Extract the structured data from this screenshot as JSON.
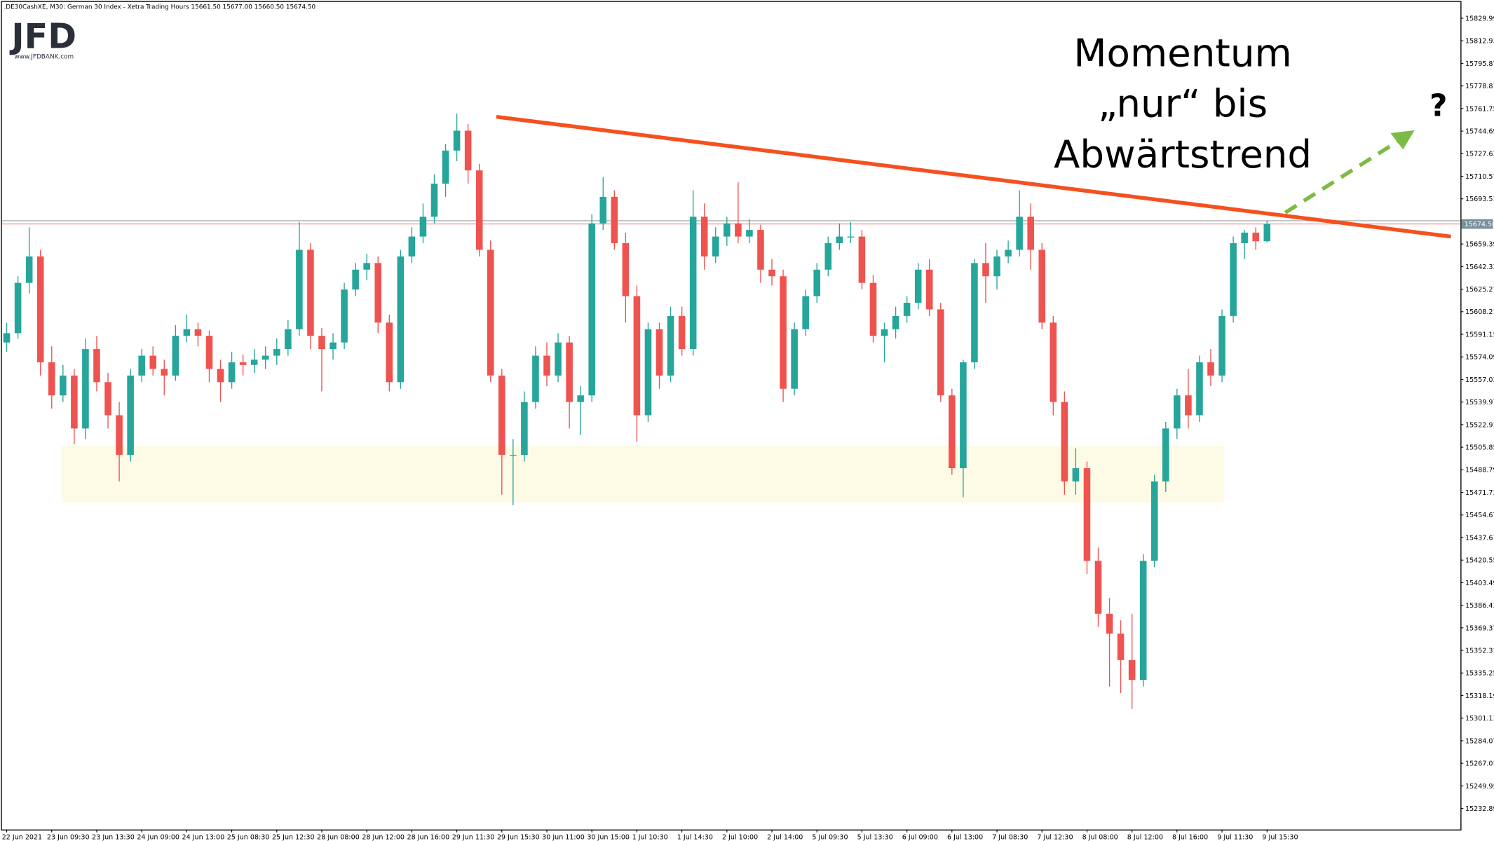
{
  "chart_data": {
    "type": "candlestick",
    "title": ".DE30CashXE, M30:  German 30 Index  - Xetra Trading Hours  15661.50 15677.00 15660.50 15674.50",
    "logo": {
      "text": "JFD",
      "url": "www.JFDBANK.com"
    },
    "annotation": [
      "Momentum",
      "„nur“ bis",
      "Abwärtstrend"
    ],
    "question": "?",
    "x_labels": [
      "22 Jun 2021",
      "23 Jun 09:30",
      "23 Jun 13:30",
      "24 Jun 09:00",
      "24 Jun 13:00",
      "25 Jun 08:30",
      "25 Jun 12:30",
      "28 Jun 08:00",
      "28 Jun 12:00",
      "28 Jun 16:00",
      "29 Jun 11:30",
      "29 Jun 15:30",
      "30 Jun 11:00",
      "30 Jun 15:00",
      "1 Jul 10:30",
      "1 Jul 14:30",
      "2 Jul 10:00",
      "2 Jul 14:00",
      "5 Jul 09:30",
      "5 Jul 13:30",
      "6 Jul 09:00",
      "6 Jul 13:00",
      "7 Jul 08:30",
      "7 Jul 12:30",
      "8 Jul 08:00",
      "8 Jul 12:00",
      "8 Jul 16:00",
      "9 Jul 11:30",
      "9 Jul 15:30"
    ],
    "candles": [
      [
        15585,
        15600,
        15578,
        15592
      ],
      [
        15592,
        15635,
        15588,
        15630
      ],
      [
        15630,
        15672,
        15622,
        15650
      ],
      [
        15650,
        15655,
        15560,
        15570
      ],
      [
        15570,
        15582,
        15535,
        15545
      ],
      [
        15545,
        15568,
        15540,
        15560
      ],
      [
        15560,
        15565,
        15508,
        15520
      ],
      [
        15520,
        15588,
        15512,
        15580
      ],
      [
        15580,
        15590,
        15548,
        15555
      ],
      [
        15555,
        15562,
        15520,
        15530
      ],
      [
        15530,
        15540,
        15480,
        15500
      ],
      [
        15500,
        15565,
        15495,
        15560
      ],
      [
        15560,
        15580,
        15555,
        15575
      ],
      [
        15575,
        15582,
        15560,
        15565
      ],
      [
        15565,
        15572,
        15545,
        15560
      ],
      [
        15560,
        15598,
        15556,
        15590
      ],
      [
        15590,
        15606,
        15585,
        15595
      ],
      [
        15595,
        15600,
        15582,
        15590
      ],
      [
        15590,
        15594,
        15555,
        15565
      ],
      [
        15565,
        15572,
        15540,
        15555
      ],
      [
        15555,
        15578,
        15550,
        15570
      ],
      [
        15570,
        15576,
        15560,
        15568
      ],
      [
        15568,
        15580,
        15562,
        15572
      ],
      [
        15572,
        15582,
        15565,
        15575
      ],
      [
        15575,
        15588,
        15568,
        15580
      ],
      [
        15580,
        15602,
        15575,
        15595
      ],
      [
        15595,
        15676,
        15590,
        15655
      ],
      [
        15655,
        15660,
        15580,
        15590
      ],
      [
        15590,
        15596,
        15548,
        15580
      ],
      [
        15580,
        15592,
        15572,
        15585
      ],
      [
        15585,
        15630,
        15580,
        15625
      ],
      [
        15625,
        15645,
        15620,
        15640
      ],
      [
        15640,
        15652,
        15632,
        15645
      ],
      [
        15645,
        15650,
        15592,
        15600
      ],
      [
        15600,
        15606,
        15548,
        15555
      ],
      [
        15555,
        15655,
        15550,
        15650
      ],
      [
        15650,
        15672,
        15645,
        15665
      ],
      [
        15665,
        15690,
        15660,
        15680
      ],
      [
        15680,
        15712,
        15675,
        15705
      ],
      [
        15705,
        15735,
        15695,
        15730
      ],
      [
        15730,
        15758,
        15722,
        15745
      ],
      [
        15745,
        15750,
        15705,
        15715
      ],
      [
        15715,
        15720,
        15650,
        15655
      ],
      [
        15655,
        15662,
        15555,
        15560
      ],
      [
        15560,
        15565,
        15470,
        15500
      ],
      [
        15500,
        15512,
        15462,
        15500
      ],
      [
        15500,
        15548,
        15495,
        15540
      ],
      [
        15540,
        15582,
        15535,
        15575
      ],
      [
        15575,
        15585,
        15552,
        15560
      ],
      [
        15560,
        15592,
        15555,
        15585
      ],
      [
        15585,
        15590,
        15520,
        15540
      ],
      [
        15540,
        15552,
        15515,
        15545
      ],
      [
        15545,
        15682,
        15540,
        15675
      ],
      [
        15675,
        15710,
        15670,
        15695
      ],
      [
        15695,
        15700,
        15655,
        15660
      ],
      [
        15660,
        15668,
        15600,
        15620
      ],
      [
        15620,
        15628,
        15510,
        15530
      ],
      [
        15530,
        15600,
        15525,
        15595
      ],
      [
        15595,
        15600,
        15550,
        15560
      ],
      [
        15560,
        15612,
        15555,
        15605
      ],
      [
        15605,
        15612,
        15575,
        15580
      ],
      [
        15580,
        15700,
        15575,
        15680
      ],
      [
        15680,
        15690,
        15640,
        15650
      ],
      [
        15650,
        15672,
        15645,
        15665
      ],
      [
        15665,
        15680,
        15658,
        15675
      ],
      [
        15675,
        15706,
        15660,
        15665
      ],
      [
        15665,
        15678,
        15660,
        15670
      ],
      [
        15670,
        15674,
        15630,
        15640
      ],
      [
        15640,
        15648,
        15628,
        15635
      ],
      [
        15635,
        15640,
        15540,
        15550
      ],
      [
        15550,
        15600,
        15545,
        15595
      ],
      [
        15595,
        15625,
        15590,
        15620
      ],
      [
        15620,
        15645,
        15615,
        15640
      ],
      [
        15640,
        15665,
        15635,
        15660
      ],
      [
        15660,
        15675,
        15655,
        15665
      ],
      [
        15665,
        15676,
        15660,
        15665
      ],
      [
        15665,
        15670,
        15625,
        15630
      ],
      [
        15630,
        15636,
        15585,
        15590
      ],
      [
        15590,
        15600,
        15570,
        15595
      ],
      [
        15595,
        15612,
        15588,
        15605
      ],
      [
        15605,
        15620,
        15600,
        15615
      ],
      [
        15615,
        15645,
        15610,
        15640
      ],
      [
        15640,
        15648,
        15605,
        15610
      ],
      [
        15610,
        15615,
        15540,
        15545
      ],
      [
        15545,
        15550,
        15485,
        15490
      ],
      [
        15490,
        15572,
        15468,
        15570
      ],
      [
        15570,
        15648,
        15565,
        15645
      ],
      [
        15645,
        15660,
        15615,
        15635
      ],
      [
        15635,
        15655,
        15625,
        15650
      ],
      [
        15650,
        15662,
        15645,
        15655
      ],
      [
        15655,
        15700,
        15650,
        15680
      ],
      [
        15680,
        15690,
        15640,
        15655
      ],
      [
        15655,
        15660,
        15595,
        15600
      ],
      [
        15600,
        15605,
        15530,
        15540
      ],
      [
        15540,
        15548,
        15470,
        15480
      ],
      [
        15480,
        15505,
        15470,
        15490
      ],
      [
        15490,
        15495,
        15410,
        15420
      ],
      [
        15420,
        15430,
        15370,
        15380
      ],
      [
        15380,
        15392,
        15325,
        15365
      ],
      [
        15365,
        15375,
        15320,
        15345
      ],
      [
        15345,
        15380,
        15308,
        15330
      ],
      [
        15330,
        15425,
        15325,
        15420
      ],
      [
        15420,
        15485,
        15415,
        15480
      ],
      [
        15480,
        15525,
        15472,
        15520
      ],
      [
        15520,
        15550,
        15512,
        15545
      ],
      [
        15545,
        15565,
        15520,
        15530
      ],
      [
        15530,
        15575,
        15525,
        15570
      ],
      [
        15570,
        15580,
        15552,
        15560
      ],
      [
        15560,
        15610,
        15555,
        15605
      ],
      [
        15605,
        15665,
        15600,
        15660
      ],
      [
        15660,
        15670,
        15648,
        15668
      ],
      [
        15668,
        15672,
        15655,
        15661.5
      ],
      [
        15661.5,
        15677,
        15660.5,
        15674.5
      ]
    ],
    "up_color": "#26a69a",
    "down_color": "#ef5350",
    "ylim": [
      15217,
      15842.3
    ],
    "yticks": [
      15829.99,
      15812.93,
      15795.87,
      15778.81,
      15761.75,
      15744.69,
      15727.63,
      15710.57,
      15693.51,
      15659.39,
      15642.33,
      15625.27,
      15608.21,
      15591.15,
      15574.09,
      15557.03,
      15539.97,
      15522.91,
      15505.85,
      15488.79,
      15471.73,
      15454.67,
      15437.61,
      15420.55,
      15403.49,
      15386.43,
      15369.37,
      15352.31,
      15335.25,
      15318.19,
      15301.13,
      15284.07,
      15267.01,
      15249.95,
      15232.89
    ],
    "price_label": {
      "value": 15674.5,
      "label": "15674.50"
    },
    "resistance": 15677,
    "support_zone": [
      15464,
      15507
    ],
    "trendline": {
      "start": 15755.5,
      "end": 15665,
      "color": "#f4511e"
    }
  }
}
